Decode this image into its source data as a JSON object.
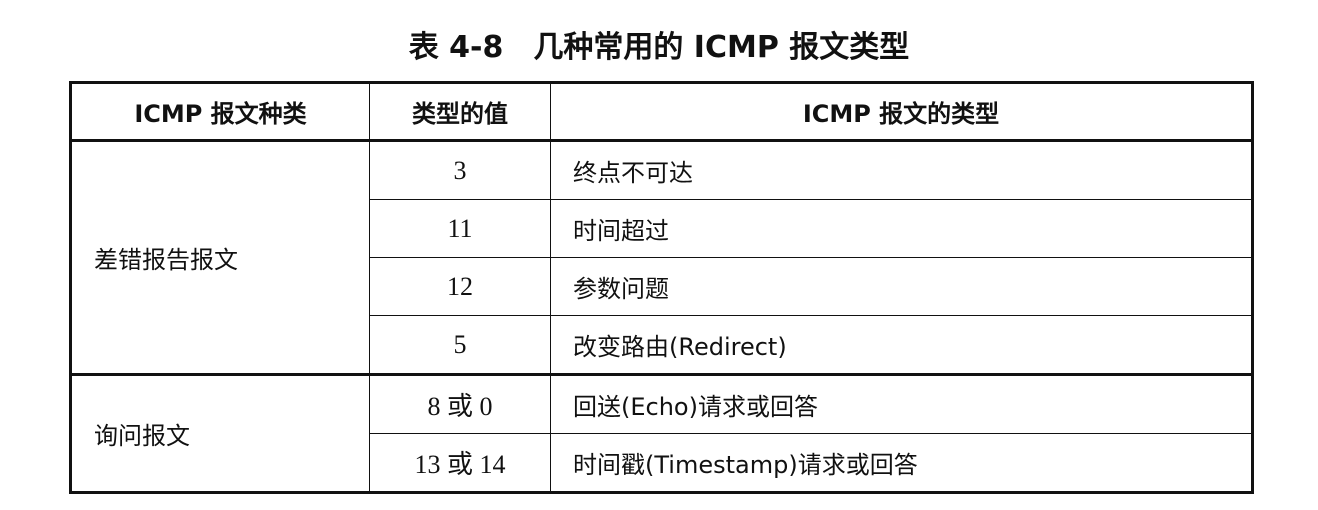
{
  "title": "表 4-8　几种常用的 ICMP 报文类型",
  "headers": [
    "ICMP 报文种类",
    "类型的值",
    "ICMP 报文的类型"
  ],
  "groups": [
    {
      "category": "差错报告报文",
      "rows": [
        {
          "value": "3",
          "type": "终点不可达"
        },
        {
          "value": "11",
          "type": "时间超过"
        },
        {
          "value": "12",
          "type": "参数问题"
        },
        {
          "value": "5",
          "type": "改变路由(Redirect)"
        }
      ]
    },
    {
      "category": "询问报文",
      "rows": [
        {
          "value": "8 或 0",
          "type": "回送(Echo)请求或回答"
        },
        {
          "value": "13 或 14",
          "type": "时间戳(Timestamp)请求或回答"
        }
      ]
    }
  ]
}
